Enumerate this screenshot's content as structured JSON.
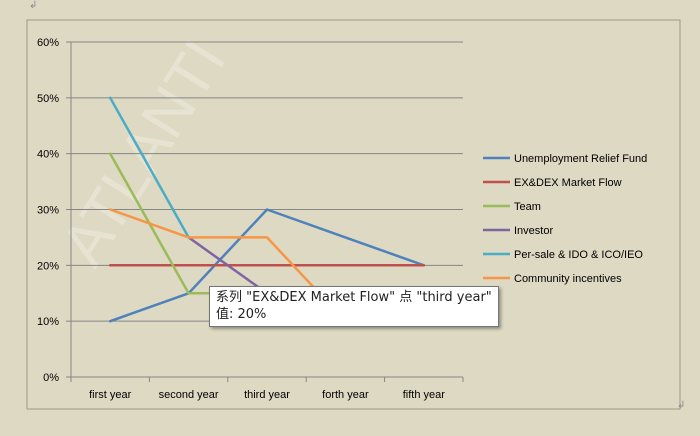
{
  "chart_data": {
    "type": "line",
    "categories": [
      "first year",
      "second year",
      "third year",
      "forth year",
      "fifth year"
    ],
    "y_ticks": [
      "0%",
      "10%",
      "20%",
      "30%",
      "40%",
      "50%",
      "60%"
    ],
    "ylim": [
      0,
      60
    ],
    "grid": true,
    "legend_position": "right",
    "series": [
      {
        "name": "Unemployment Relief Fund",
        "color": "#4f81bd",
        "values": [
          10,
          15,
          30,
          25,
          20
        ]
      },
      {
        "name": "EX&DEX Market Flow",
        "color": "#c0504d",
        "values": [
          20,
          20,
          20,
          20,
          20
        ]
      },
      {
        "name": "Team",
        "color": "#9bbb59",
        "values": [
          40,
          15,
          15,
          15,
          15
        ]
      },
      {
        "name": "Investor",
        "color": "#8064a2",
        "values": [
          null,
          25,
          15,
          15,
          15
        ]
      },
      {
        "name": "Per-sale & IDO & ICO/IEO",
        "color": "#4bacc6",
        "values": [
          50,
          25,
          null,
          null,
          null
        ]
      },
      {
        "name": "Community incentives",
        "color": "#f79646",
        "values": [
          30,
          25,
          25,
          10,
          10
        ]
      }
    ],
    "watermark": "ATLANTI"
  },
  "tooltip": {
    "line1": "系列 \"EX&DEX Market Flow\" 点 \"third year\"",
    "line2": "值: 20%"
  },
  "marks": {
    "top_left": "↲",
    "bottom_right": "↲"
  }
}
